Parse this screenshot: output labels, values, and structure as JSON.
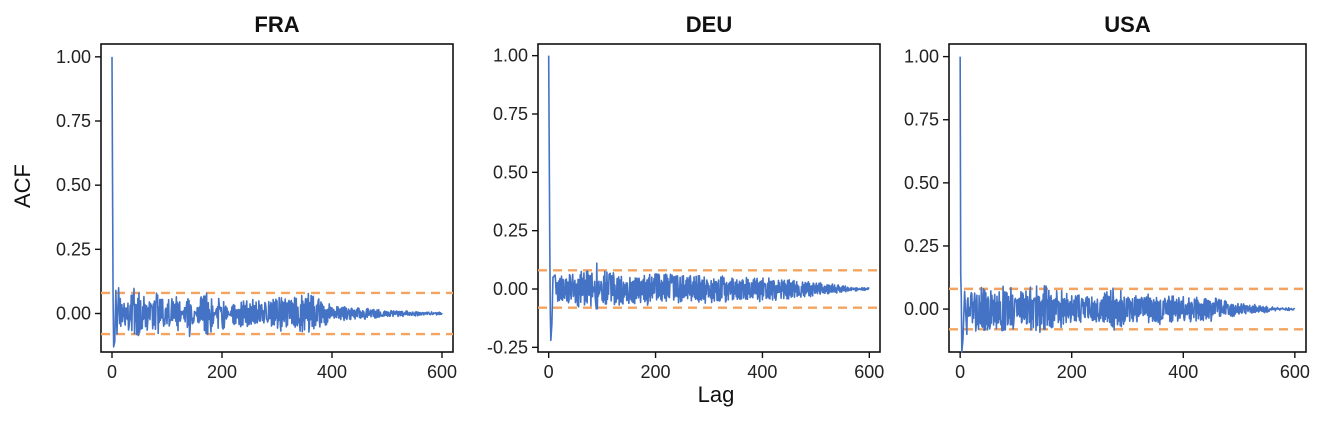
{
  "figure": {
    "xlabel": "Lag",
    "ylabel": "ACF"
  },
  "colors": {
    "acf_line": "#4472c4",
    "confidence_band": "#f4a460",
    "axis": "#111111"
  },
  "chart_data": [
    {
      "type": "line",
      "title": "FRA",
      "x_ticks": [
        "0",
        "200",
        "400",
        "600"
      ],
      "y_ticks": [
        "0.00",
        "0.25",
        "0.50",
        "0.75",
        "1.00"
      ],
      "xlim": [
        -20,
        620
      ],
      "ylim": [
        -0.15,
        1.05
      ],
      "confidence_bound": 0.08,
      "n_lags": 600,
      "decay_lag": 350,
      "series": [
        {
          "x": [
            0,
            1,
            2,
            3,
            5,
            7,
            9,
            12,
            20,
            40,
            60,
            80,
            100,
            120,
            140,
            160,
            175,
            180,
            195,
            200,
            220,
            250,
            280,
            300,
            330,
            360,
            400,
            450,
            500,
            550,
            600
          ],
          "y": [
            1.0,
            0.5,
            0.05,
            -0.13,
            -0.11,
            0.09,
            -0.08,
            0.1,
            0.05,
            0.11,
            0.06,
            0.08,
            0.05,
            0.07,
            -0.1,
            0.07,
            0.1,
            -0.1,
            0.1,
            -0.08,
            0.04,
            0.06,
            0.04,
            0.07,
            0.06,
            0.08,
            0.04,
            0.03,
            0.02,
            0.02,
            0.0
          ]
        }
      ]
    },
    {
      "type": "line",
      "title": "DEU",
      "x_ticks": [
        "0",
        "200",
        "400",
        "600"
      ],
      "y_ticks": [
        "-0.25",
        "0.00",
        "0.25",
        "0.50",
        "0.75",
        "1.00"
      ],
      "xlim": [
        -20,
        620
      ],
      "ylim": [
        -0.27,
        1.05
      ],
      "confidence_bound": 0.08,
      "n_lags": 600,
      "decay_lag": 500,
      "series": [
        {
          "x": [
            0,
            1,
            2,
            3,
            4,
            6,
            8,
            12,
            20,
            40,
            60,
            80,
            90,
            100,
            150,
            200,
            250,
            300,
            350,
            400,
            450,
            500,
            550,
            600
          ],
          "y": [
            1.0,
            0.6,
            0.2,
            -0.1,
            -0.22,
            -0.15,
            0.05,
            0.06,
            0.05,
            0.07,
            0.08,
            0.09,
            -0.12,
            0.08,
            0.06,
            0.07,
            0.06,
            0.06,
            0.05,
            0.05,
            0.04,
            0.03,
            0.02,
            0.0
          ]
        }
      ]
    },
    {
      "type": "line",
      "title": "USA",
      "x_ticks": [
        "0",
        "200",
        "400",
        "600"
      ],
      "y_ticks": [
        "0.00",
        "0.25",
        "0.50",
        "0.75",
        "1.00"
      ],
      "xlim": [
        -20,
        620
      ],
      "ylim": [
        -0.17,
        1.05
      ],
      "confidence_bound": 0.08,
      "n_lags": 600,
      "decay_lag": 450,
      "series": [
        {
          "x": [
            0,
            1,
            2,
            3,
            5,
            8,
            12,
            20,
            40,
            60,
            80,
            100,
            150,
            200,
            250,
            280,
            300,
            350,
            400,
            450,
            500,
            550,
            600
          ],
          "y": [
            1.0,
            0.14,
            0.05,
            -0.17,
            -0.12,
            0.07,
            -0.1,
            0.08,
            0.09,
            0.08,
            0.1,
            0.07,
            0.1,
            0.06,
            0.05,
            0.09,
            0.05,
            0.06,
            0.05,
            0.05,
            0.03,
            0.02,
            -0.01
          ]
        }
      ]
    }
  ]
}
